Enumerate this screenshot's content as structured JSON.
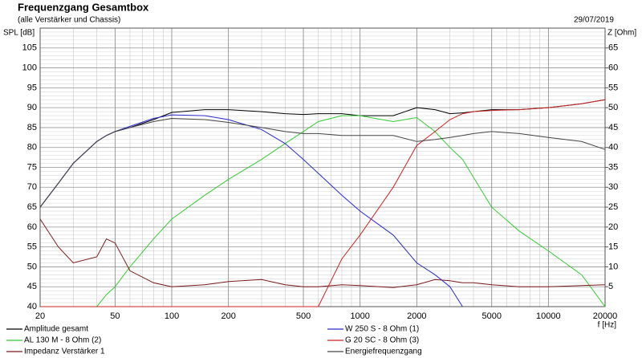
{
  "chart_data": {
    "type": "line",
    "title": "Frequenzgang Gesamtbox",
    "subtitle": "(alle Verstärker und Chassis)",
    "date": "29/07/2019",
    "y_label": "SPL [dB]",
    "y2_label": "Z [Ohm]",
    "x_label": "f [Hz]",
    "xscale": "log",
    "grid": true,
    "x": [
      20,
      25,
      30,
      40,
      45,
      50,
      60,
      80,
      100,
      150,
      200,
      300,
      400,
      500,
      600,
      800,
      1000,
      1500,
      2000,
      2500,
      3000,
      3500,
      4000,
      5000,
      7000,
      10000,
      15000,
      20000
    ],
    "xlim": [
      20,
      20000
    ],
    "xticks": [
      20,
      50,
      100,
      200,
      500,
      1000,
      2000,
      5000,
      10000,
      20000
    ],
    "ylim": [
      40,
      110
    ],
    "yticks": [
      40,
      45,
      50,
      55,
      60,
      65,
      70,
      75,
      80,
      85,
      90,
      95,
      100,
      105
    ],
    "y2lim": [
      0,
      70
    ],
    "y2ticks": [
      5,
      10,
      15,
      20,
      25,
      30,
      35,
      40,
      45,
      50,
      55,
      60,
      65
    ],
    "series": [
      {
        "name": "Amplitude gesamt",
        "color": "#000000",
        "values": [
          65,
          71,
          76,
          81.5,
          83,
          84,
          85,
          87,
          88.8,
          89.5,
          89.5,
          89,
          88.5,
          88.3,
          88.5,
          88.5,
          88,
          88,
          90,
          89.5,
          88.5,
          88.7,
          89,
          89.5,
          89.5,
          90,
          91,
          92
        ]
      },
      {
        "name": "AL 130 M - 8 Ohm (2)",
        "color": "#33cc33",
        "values": [
          40,
          40,
          40,
          40,
          43,
          45,
          50,
          57,
          62,
          68,
          72,
          77,
          81,
          84,
          86.5,
          88,
          88,
          86.5,
          87.5,
          84,
          80,
          77,
          72.5,
          65,
          59,
          54,
          48,
          40
        ]
      },
      {
        "name": "Impedanz Verstärker 1",
        "color": "#7a1a1a",
        "axis": "y2",
        "values": [
          22,
          15,
          11,
          12.5,
          17,
          16,
          9,
          6,
          5,
          5.5,
          6.3,
          6.8,
          5.5,
          5,
          5,
          5.5,
          5.3,
          4.8,
          5.5,
          6.8,
          6.5,
          6,
          6,
          5.5,
          5,
          5,
          5.3,
          5.5
        ]
      },
      {
        "name": "W 250 S - 8 Ohm  (1)",
        "color": "#2b2bcc",
        "values": [
          65,
          71,
          76,
          81.5,
          83,
          84,
          85.3,
          87.3,
          88.2,
          88,
          87,
          84.5,
          81,
          77,
          73.5,
          68,
          64,
          58,
          51,
          48,
          45,
          40,
          null,
          null,
          null,
          null,
          null,
          null
        ]
      },
      {
        "name": "G 20 SC - 8 Ohm (3)",
        "color": "#cc2222",
        "values": [
          40,
          40,
          40,
          40,
          40,
          40,
          40,
          40,
          40,
          40,
          40,
          40,
          40,
          40,
          40,
          52,
          58,
          70,
          80.5,
          84,
          87,
          88.5,
          89,
          89.3,
          89.5,
          90,
          91,
          92
        ]
      },
      {
        "name": "Energiefrequenzgang",
        "color": "#444444",
        "values": [
          65,
          71,
          76,
          81.5,
          83,
          84,
          85,
          86.5,
          87.3,
          87,
          86.3,
          85,
          84,
          83.5,
          83.5,
          83,
          83,
          83,
          81.5,
          82,
          82.5,
          83,
          83.5,
          84,
          83.5,
          82.5,
          81.5,
          79.5
        ]
      }
    ]
  }
}
